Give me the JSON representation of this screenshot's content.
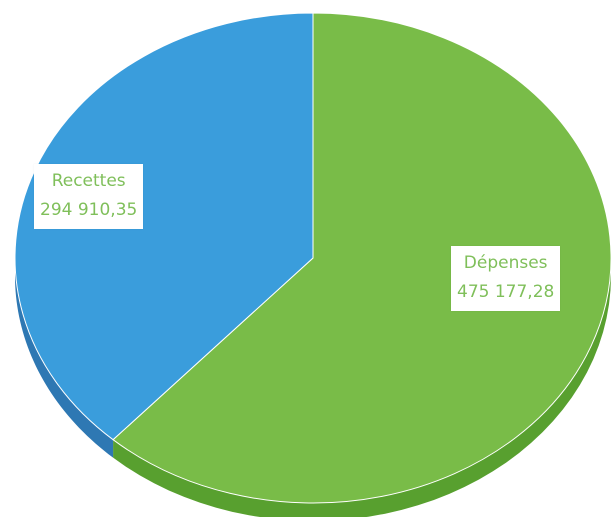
{
  "chart_data": {
    "type": "pie",
    "style": "3d",
    "slices": [
      {
        "label": "Dépenses",
        "value": 475177.28,
        "value_text": "475 177,28",
        "color": "#79BC48",
        "side_color": "#58A02F"
      },
      {
        "label": "Recettes",
        "value": 294910.35,
        "value_text": "294 910,35",
        "color": "#3A9DDC",
        "side_color": "#2E78B3"
      }
    ],
    "label_text_colors": {
      "Recettes": "#7FBF5A",
      "Dépenses": "#7FBF5A"
    }
  }
}
